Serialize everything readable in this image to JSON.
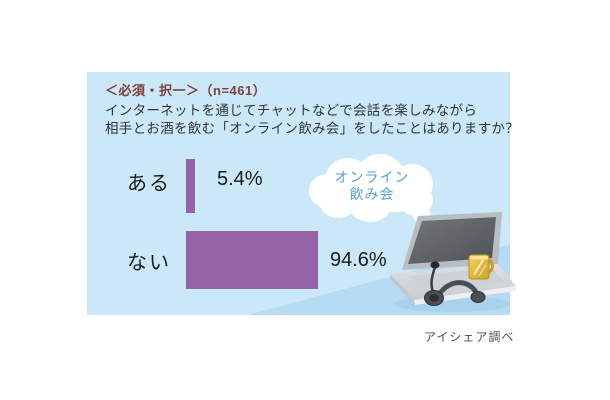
{
  "panel": {
    "header": "＜必須・択一＞（n=461）",
    "question_line1": "インターネットを通じてチャットなどで会話を楽しみながら",
    "question_line2": "相手とお酒を飲む「オンライン飲み会」をしたことはありますか？",
    "bubble_line1": "オンライン",
    "bubble_line2": "飲み会",
    "caption": "アイシェア調べ"
  },
  "chart_data": {
    "type": "bar",
    "orientation": "horizontal",
    "title": "オンライン飲み会をしたことはありますか？",
    "sample_note": "n=461",
    "categories": [
      "ある",
      "ない"
    ],
    "values": [
      5.4,
      94.6
    ],
    "value_labels": [
      "5.4%",
      "94.6%"
    ],
    "xlim": [
      0,
      100
    ],
    "grid": false,
    "bar_color": "#9563a6",
    "panel_color": "#cbe8f8",
    "header_color": "#7b4138",
    "bubble_text_color": "#57a0d3"
  }
}
